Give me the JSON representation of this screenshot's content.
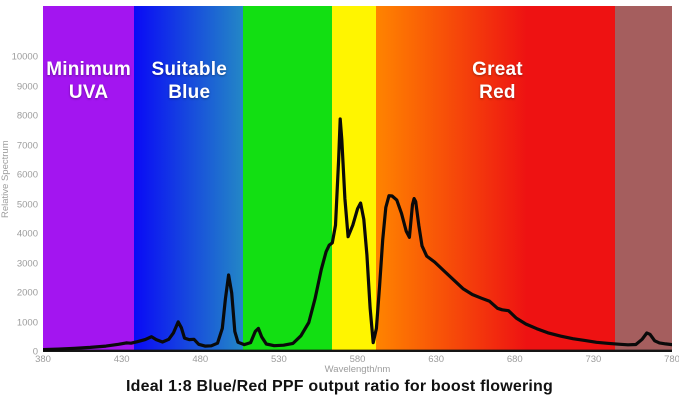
{
  "title": "Ideal 1:8 Blue/Red PPF output ratio for boost flowering",
  "band_labels": [
    {
      "id": "uva",
      "line1": "Minimum",
      "line2": "UVA",
      "center_nm": 409
    },
    {
      "id": "blue",
      "line1": "Suitable",
      "line2": "Blue",
      "center_nm": 473
    },
    {
      "id": "red",
      "line1": "Great",
      "line2": "Red",
      "center_nm": 669
    }
  ],
  "colors": {
    "violet_band": "#a315f0",
    "blue_band_start": "#0a0af6",
    "blue_band_end": "#2387c6",
    "green_band": "#12df12",
    "yellow_band": "#fff500",
    "orange_band_start": "#ff8400",
    "red_band": "#ee1212",
    "deep_red_band": "#a55e5e",
    "curve": "#0a0a0a",
    "axis_text": "#9c9c9c",
    "label_text": "#ffffff",
    "caption_text": "#111111"
  },
  "chart_data": {
    "type": "line",
    "title": "Ideal 1:8 Blue/Red PPF output ratio for boost flowering",
    "xlabel": "Wavelength/nm",
    "ylabel": "Relative Spectrum",
    "xlim": [
      380,
      780
    ],
    "ylim": [
      0,
      11730
    ],
    "x_ticks": [
      380,
      430,
      480,
      530,
      580,
      630,
      680,
      730,
      780
    ],
    "y_ticks": [
      0,
      1000,
      2000,
      3000,
      4000,
      5000,
      6000,
      7000,
      8000,
      9000,
      10000
    ],
    "grid": false,
    "legend": "none",
    "bands": [
      {
        "name": "minimum-uva-violet",
        "from_nm": 380,
        "to_nm": 438,
        "colors": [
          "#a315f0"
        ]
      },
      {
        "name": "suitable-blue",
        "from_nm": 438,
        "to_nm": 507,
        "colors": [
          "#0a0af6",
          "#2387c6"
        ]
      },
      {
        "name": "green",
        "from_nm": 507,
        "to_nm": 564,
        "colors": [
          "#12df12"
        ]
      },
      {
        "name": "yellow",
        "from_nm": 564,
        "to_nm": 592,
        "colors": [
          "#fff500"
        ]
      },
      {
        "name": "orange-to-red",
        "from_nm": 592,
        "to_nm": 688,
        "colors": [
          "#ff8400",
          "#ee1212"
        ]
      },
      {
        "name": "great-red",
        "from_nm": 688,
        "to_nm": 744,
        "colors": [
          "#ee1212"
        ]
      },
      {
        "name": "deep-red-brown",
        "from_nm": 744,
        "to_nm": 780,
        "colors": [
          "#a55e5e"
        ]
      }
    ],
    "series": [
      {
        "name": "relative-spectrum",
        "points": [
          [
            380,
            80
          ],
          [
            390,
            100
          ],
          [
            400,
            125
          ],
          [
            410,
            155
          ],
          [
            420,
            200
          ],
          [
            428,
            260
          ],
          [
            433,
            310
          ],
          [
            436,
            300
          ],
          [
            440,
            350
          ],
          [
            445,
            420
          ],
          [
            449,
            520
          ],
          [
            452,
            420
          ],
          [
            456,
            340
          ],
          [
            460,
            430
          ],
          [
            463,
            650
          ],
          [
            466,
            1020
          ],
          [
            468,
            820
          ],
          [
            470,
            470
          ],
          [
            473,
            420
          ],
          [
            476,
            430
          ],
          [
            479,
            260
          ],
          [
            483,
            200
          ],
          [
            487,
            210
          ],
          [
            491,
            300
          ],
          [
            494,
            800
          ],
          [
            496,
            1800
          ],
          [
            498,
            2610
          ],
          [
            500,
            2000
          ],
          [
            502,
            700
          ],
          [
            504,
            330
          ],
          [
            508,
            250
          ],
          [
            512,
            320
          ],
          [
            515,
            700
          ],
          [
            517,
            800
          ],
          [
            519,
            520
          ],
          [
            522,
            270
          ],
          [
            527,
            215
          ],
          [
            533,
            230
          ],
          [
            539,
            290
          ],
          [
            544,
            550
          ],
          [
            549,
            1000
          ],
          [
            553,
            1800
          ],
          [
            557,
            2800
          ],
          [
            560,
            3400
          ],
          [
            562,
            3620
          ],
          [
            564,
            3700
          ],
          [
            566,
            4300
          ],
          [
            568,
            6500
          ],
          [
            569,
            7900
          ],
          [
            570,
            7200
          ],
          [
            572,
            5200
          ],
          [
            574,
            3910
          ],
          [
            577,
            4300
          ],
          [
            580,
            4850
          ],
          [
            582,
            5050
          ],
          [
            584,
            4500
          ],
          [
            586,
            3300
          ],
          [
            588,
            1500
          ],
          [
            590,
            320
          ],
          [
            592,
            800
          ],
          [
            594,
            2200
          ],
          [
            596,
            3800
          ],
          [
            598,
            4900
          ],
          [
            600,
            5300
          ],
          [
            602,
            5290
          ],
          [
            605,
            5150
          ],
          [
            608,
            4700
          ],
          [
            611,
            4100
          ],
          [
            613,
            3890
          ],
          [
            615,
            5000
          ],
          [
            616,
            5200
          ],
          [
            617,
            5100
          ],
          [
            619,
            4300
          ],
          [
            621,
            3600
          ],
          [
            624,
            3250
          ],
          [
            629,
            3050
          ],
          [
            635,
            2750
          ],
          [
            641,
            2450
          ],
          [
            647,
            2150
          ],
          [
            653,
            1950
          ],
          [
            659,
            1820
          ],
          [
            664,
            1720
          ],
          [
            669,
            1480
          ],
          [
            672,
            1430
          ],
          [
            676,
            1400
          ],
          [
            681,
            1150
          ],
          [
            687,
            950
          ],
          [
            694,
            790
          ],
          [
            701,
            650
          ],
          [
            709,
            540
          ],
          [
            717,
            450
          ],
          [
            725,
            385
          ],
          [
            732,
            330
          ],
          [
            739,
            295
          ],
          [
            746,
            265
          ],
          [
            752,
            245
          ],
          [
            757,
            255
          ],
          [
            761,
            430
          ],
          [
            764,
            645
          ],
          [
            766,
            600
          ],
          [
            769,
            380
          ],
          [
            772,
            310
          ],
          [
            776,
            275
          ],
          [
            780,
            250
          ]
        ]
      }
    ]
  }
}
